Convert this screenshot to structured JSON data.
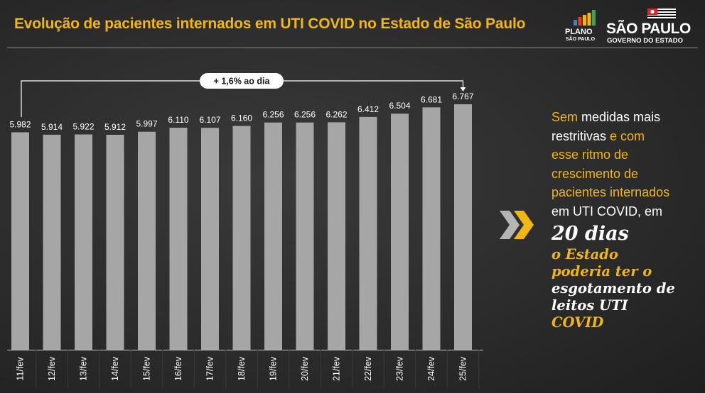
{
  "header": {
    "title": "Evolução de pacientes internados em UTI COVID no Estado de São Paulo",
    "logo_plano_line1": "PLANO",
    "logo_plano_line2": "SÃO PAULO",
    "logo_sp_name": "SÃO PAULO",
    "logo_sp_gov": "GOVERNO DO ESTADO"
  },
  "colors": {
    "accent": "#f2b614",
    "bar": "#a6a6a6",
    "background": "#2c2c2c",
    "text": "#ffffff"
  },
  "chart_data": {
    "type": "bar",
    "categories": [
      "11/fev",
      "12/fev",
      "13/fev",
      "14/fev",
      "15/fev",
      "16/fev",
      "17/fev",
      "18/fev",
      "19/fev",
      "20/fev",
      "21/fev",
      "22/fev",
      "23/fev",
      "24/fev",
      "25/fev"
    ],
    "values": [
      5982,
      5914,
      5922,
      5912,
      5997,
      6110,
      6107,
      6160,
      6256,
      6256,
      6262,
      6412,
      6504,
      6681,
      6767
    ],
    "value_labels": [
      "5.982",
      "5.914",
      "5.922",
      "5.912",
      "5.997",
      "6.110",
      "6.107",
      "6.160",
      "6.256",
      "6.256",
      "6.262",
      "6.412",
      "6.504",
      "6.681",
      "6.767"
    ],
    "annotation": "+ 1,6% ao dia",
    "grid": false,
    "legend": "none"
  },
  "sidebar": {
    "line1_a": "Sem",
    "line1_b": " medidas mais",
    "line2_a": "restritivas",
    "line2_b": " e com",
    "line3": "esse ritmo de",
    "line4": "crescimento de",
    "line5": "pacientes internados",
    "line6": "em UTI COVID, em",
    "big": "20 dias",
    "em1": "o Estado",
    "em2": "poderia ter o",
    "em3": "esgotamento de",
    "em4": "leitos UTI",
    "em5": "COVID"
  }
}
